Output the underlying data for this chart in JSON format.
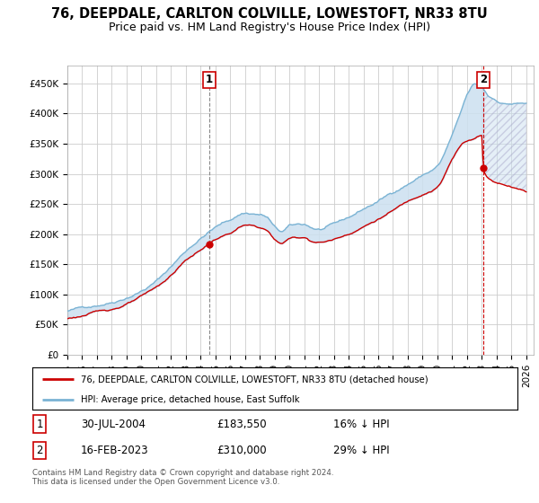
{
  "title": "76, DEEPDALE, CARLTON COLVILLE, LOWESTOFT, NR33 8TU",
  "subtitle": "Price paid vs. HM Land Registry's House Price Index (HPI)",
  "hpi_color": "#7ab3d4",
  "hpi_fill_color": "#cce0f0",
  "price_color": "#cc0000",
  "marker_color": "#cc0000",
  "background_color": "#ffffff",
  "grid_color": "#cccccc",
  "transaction1": {
    "date": "30-JUL-2004",
    "price": 183550,
    "label": "1",
    "pct": "16% ↓ HPI",
    "x_year": 2004.58
  },
  "transaction2": {
    "date": "16-FEB-2023",
    "price": 310000,
    "label": "2",
    "pct": "29% ↓ HPI",
    "x_year": 2023.12
  },
  "legend_label1": "76, DEEPDALE, CARLTON COLVILLE, LOWESTOFT, NR33 8TU (detached house)",
  "legend_label2": "HPI: Average price, detached house, East Suffolk",
  "footer": "Contains HM Land Registry data © Crown copyright and database right 2024.\nThis data is licensed under the Open Government Licence v3.0.",
  "title_fontsize": 10.5,
  "subtitle_fontsize": 9,
  "tick_fontsize": 7.5,
  "yticks": [
    0,
    50000,
    100000,
    150000,
    200000,
    250000,
    300000,
    350000,
    400000,
    450000
  ],
  "ytick_labels": [
    "£0",
    "£50K",
    "£100K",
    "£150K",
    "£200K",
    "£250K",
    "£300K",
    "£350K",
    "£400K",
    "£450K"
  ],
  "ylim": [
    0,
    480000
  ],
  "xlim_start": 1995,
  "xlim_end": 2026.5
}
